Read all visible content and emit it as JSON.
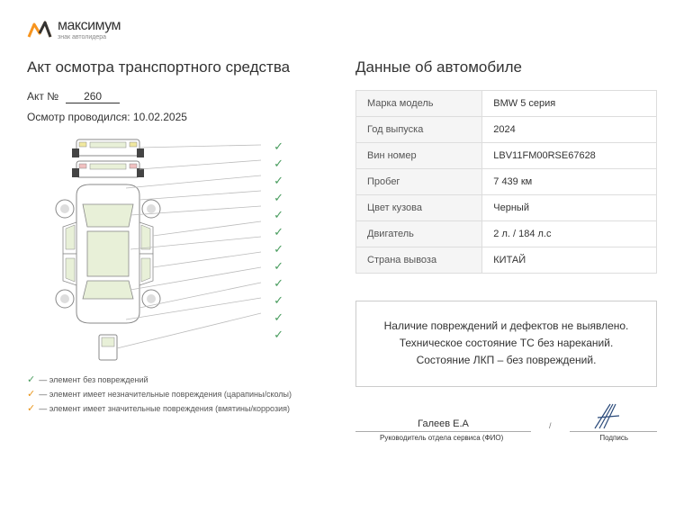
{
  "logo": {
    "name": "максимум",
    "tagline": "знак автолидера"
  },
  "left_title": "Акт осмотра транспортного средства",
  "act_label": "Акт №",
  "act_number": "260",
  "inspection_label": "Осмотр проводился:",
  "inspection_date": "10.02.2025",
  "legend": {
    "none": "— элемент без повреждений",
    "minor": "— элемент имеет незначительные повреждения (царапины/сколы)",
    "major": "— элемент имеет значительные повреждения (вмятины/коррозия)"
  },
  "right_title": "Данные об автомобиле",
  "vehicle": {
    "rows": [
      {
        "label": "Марка модель",
        "value": "BMW 5 серия"
      },
      {
        "label": "Год выпуска",
        "value": "2024"
      },
      {
        "label": "Вин номер",
        "value": "LBV11FM00RSE67628"
      },
      {
        "label": "Пробег",
        "value": "7 439 км"
      },
      {
        "label": "Цвет кузова",
        "value": "Черный"
      },
      {
        "label": "Двигатель",
        "value": "2 л. / 184 л.с"
      },
      {
        "label": "Страна вывоза",
        "value": "КИТАЙ"
      }
    ]
  },
  "status": {
    "line1": "Наличие повреждений и дефектов не выявлено.",
    "line2": "Техническое состояние ТС без нареканий.",
    "line3": "Состояние ЛКП – без повреждений."
  },
  "signature": {
    "name": "Галеев Е.А",
    "name_label": "Руководитель отдела сервиса (ФИО)",
    "sign_label": "Подпись"
  },
  "colors": {
    "check_green": "#4a9d5f",
    "check_orange": "#e8941a",
    "logo_orange": "#f7941e",
    "car_tint": "#e8f0d8",
    "car_stroke": "#888",
    "signature_ink": "#2a4a7a"
  }
}
